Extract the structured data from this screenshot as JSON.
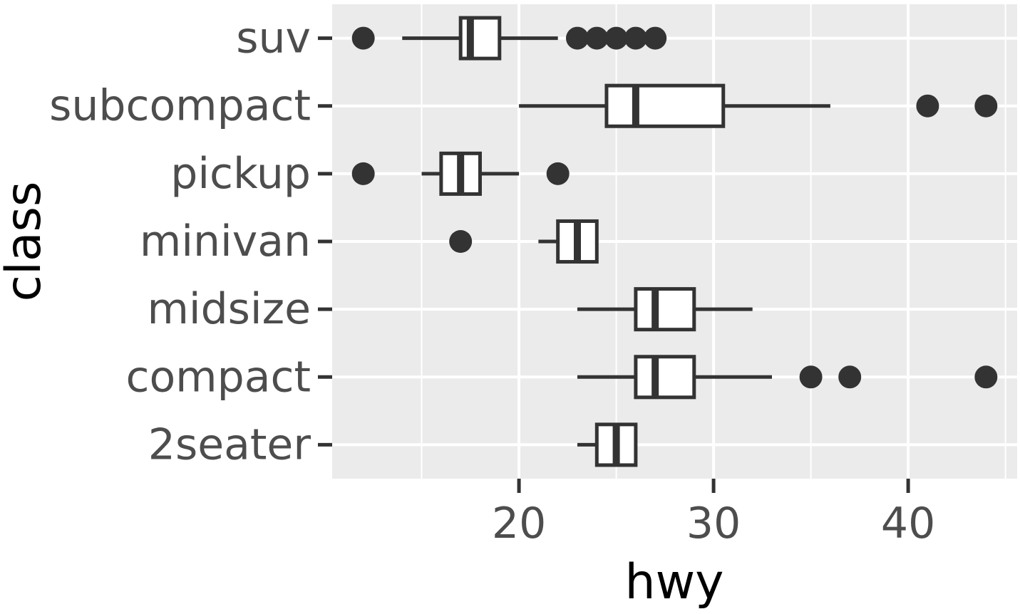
{
  "chart_data": {
    "type": "boxplot",
    "orientation": "horizontal",
    "xlabel": "hwy",
    "ylabel": "class",
    "xlim": [
      10.4,
      45.6
    ],
    "x_ticks": [
      20,
      30,
      40
    ],
    "x_tick_labels": [
      "20",
      "30",
      "40"
    ],
    "grid": true,
    "categories": [
      "2seater",
      "compact",
      "midsize",
      "minivan",
      "pickup",
      "subcompact",
      "suv"
    ],
    "boxes": [
      {
        "category": "2seater",
        "whisker_low": 23,
        "q1": 24,
        "median": 25,
        "q3": 26,
        "whisker_high": 26,
        "outliers": []
      },
      {
        "category": "compact",
        "whisker_low": 23,
        "q1": 26,
        "median": 27,
        "q3": 29,
        "whisker_high": 33,
        "outliers": [
          35,
          37,
          44
        ]
      },
      {
        "category": "midsize",
        "whisker_low": 23,
        "q1": 26,
        "median": 27,
        "q3": 29,
        "whisker_high": 32,
        "outliers": []
      },
      {
        "category": "minivan",
        "whisker_low": 21,
        "q1": 22,
        "median": 23,
        "q3": 24,
        "whisker_high": 24,
        "outliers": [
          17
        ]
      },
      {
        "category": "pickup",
        "whisker_low": 15,
        "q1": 16,
        "median": 17,
        "q3": 18,
        "whisker_high": 20,
        "outliers": [
          12,
          22
        ]
      },
      {
        "category": "subcompact",
        "whisker_low": 20,
        "q1": 24.5,
        "median": 26,
        "q3": 30.5,
        "whisker_high": 36,
        "outliers": [
          41,
          44
        ]
      },
      {
        "category": "suv",
        "whisker_low": 14,
        "q1": 17,
        "median": 17.5,
        "q3": 19,
        "whisker_high": 22,
        "outliers": [
          12,
          23,
          24,
          25,
          26,
          27
        ]
      }
    ],
    "colors": {
      "panel_background": "#ebebeb",
      "grid_major": "#ffffff",
      "box_fill": "#ffffff",
      "box_stroke": "#333333",
      "outlier": "#333333",
      "tick_text": "#4d4d4d",
      "axis_title": "#000000"
    }
  }
}
